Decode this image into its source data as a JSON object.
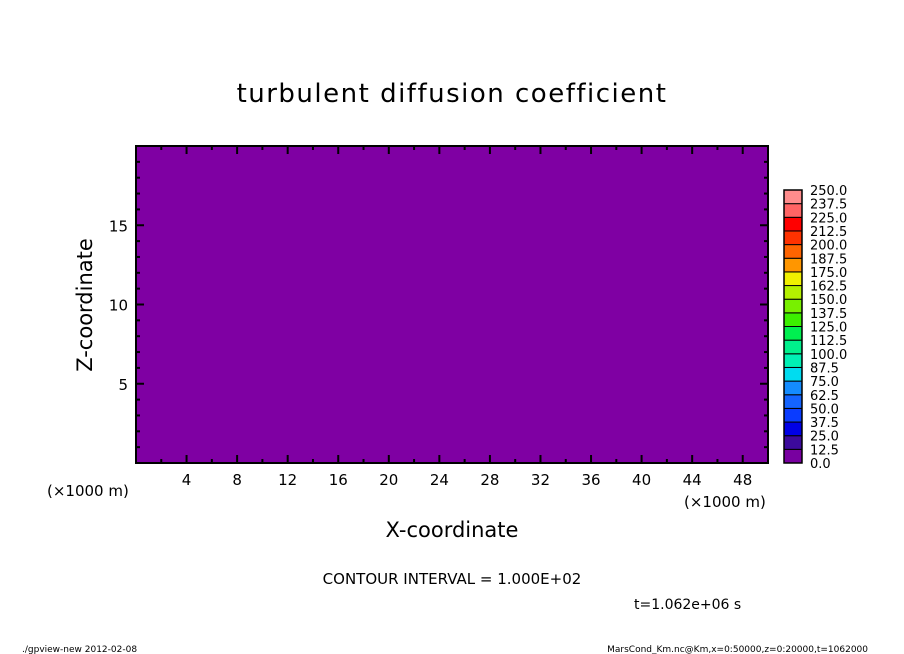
{
  "chart_data": {
    "type": "heatmap",
    "title": "turbulent diffusion coefficient",
    "xlabel": "X-coordinate",
    "ylabel": "Z-coordinate",
    "x_unit": "(×1000 m)",
    "y_unit": "(×1000 m)",
    "xlim": [
      0,
      50
    ],
    "ylim": [
      0,
      20
    ],
    "xticks": [
      4,
      8,
      12,
      16,
      20,
      24,
      28,
      32,
      36,
      40,
      44,
      48
    ],
    "yticks": [
      5,
      10,
      15
    ],
    "field_value_range": [
      0.0,
      12.5
    ],
    "field_color": "#7f00a3",
    "colorbar": {
      "levels": [
        "0.0",
        "12.5",
        "25.0",
        "37.5",
        "50.0",
        "62.5",
        "75.0",
        "87.5",
        "100.0",
        "112.5",
        "125.0",
        "137.5",
        "150.0",
        "162.5",
        "175.0",
        "187.5",
        "200.0",
        "212.5",
        "225.0",
        "237.5",
        "250.0"
      ],
      "colors": [
        "#7800a0",
        "#3c0a9c",
        "#0000b4",
        "#0000e6",
        "#0a3cff",
        "#1464ff",
        "#148cff",
        "#00b4ff",
        "#00dcf0",
        "#00f0b4",
        "#00f08c",
        "#00f050",
        "#00f000",
        "#3cf000",
        "#78f000",
        "#b4f000",
        "#f0f000",
        "#ffc800",
        "#ff9600",
        "#ff6400",
        "#ff3200",
        "#ff0000",
        "#ff3c3c",
        "#ff6464",
        "#ff8c8c"
      ]
    },
    "contour_interval_text": "CONTOUR INTERVAL = 1.000E+02",
    "time_text": "t=1.062e+06 s"
  },
  "footer": {
    "left": "./gpview-new  2012-02-08",
    "right": "MarsCond_Km.nc@Km,x=0:50000,z=0:20000,t=1062000"
  }
}
